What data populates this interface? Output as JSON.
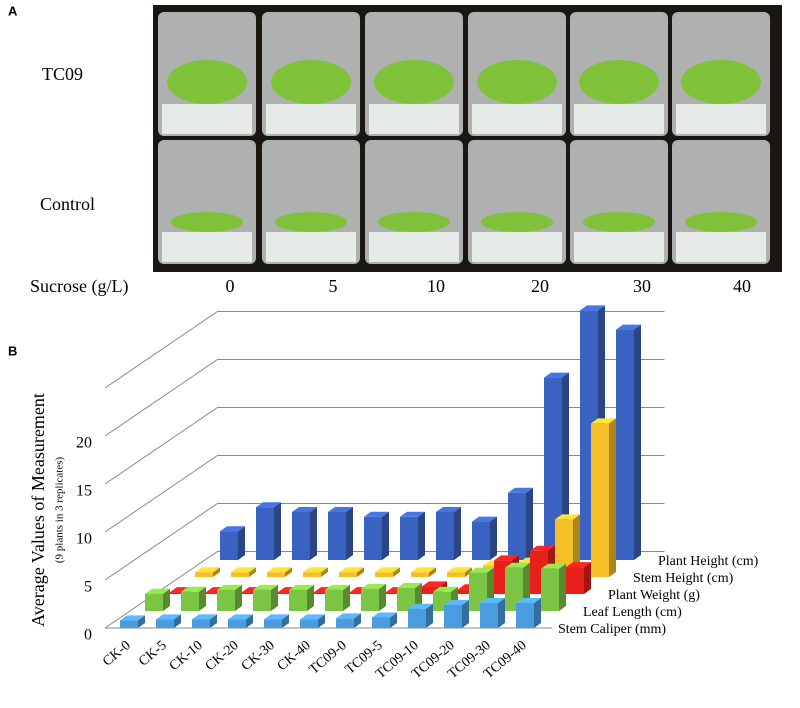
{
  "panel_a": {
    "label": "A",
    "rows": [
      "TC09",
      "Control"
    ],
    "x_label": "Sucrose (g/L)",
    "x_values": [
      0,
      5,
      10,
      20,
      30,
      40
    ]
  },
  "chart_data": {
    "type": "bar3d",
    "panel_label": "B",
    "y_label": "Average Values of Measurement",
    "y_sublabel": "(9 plants in 3 replicates)",
    "categories": [
      "CK-0",
      "CK-5",
      "CK-10",
      "CK-20",
      "CK-30",
      "CK-40",
      "TC09-0",
      "TC09-5",
      "TC09-10",
      "TC09-20",
      "TC09-30",
      "TC09-40"
    ],
    "series": [
      {
        "name": "Stem Caliper (mm)",
        "color": "#4b9be0",
        "values": [
          0.8,
          0.9,
          0.9,
          0.9,
          0.9,
          0.9,
          1.0,
          1.1,
          2.0,
          2.4,
          2.6,
          2.6
        ]
      },
      {
        "name": "Leaf Length (cm)",
        "color": "#7cc443",
        "values": [
          1.8,
          2.0,
          2.2,
          2.2,
          2.2,
          2.2,
          2.3,
          2.4,
          2.0,
          4.0,
          4.5,
          4.4
        ]
      },
      {
        "name": "Plant Weight (g)",
        "color": "#e8201c",
        "values": [
          0.2,
          0.2,
          0.2,
          0.2,
          0.2,
          0.2,
          0.2,
          0.8,
          0.5,
          3.5,
          4.5,
          2.8
        ]
      },
      {
        "name": "Stem Height (cm)",
        "color": "#f5bf2a",
        "values": [
          0.5,
          0.5,
          0.5,
          0.5,
          0.5,
          0.5,
          0.5,
          0.5,
          1.2,
          1.5,
          6.0,
          16.0
        ]
      },
      {
        "name": "Plant Height (cm)",
        "color": "#3a62c0",
        "values": [
          3.0,
          5.5,
          5.0,
          5.0,
          4.5,
          4.5,
          5.0,
          4.0,
          7.0,
          19.0,
          26.0,
          24.0
        ]
      }
    ],
    "ylim": [
      0,
      25
    ],
    "yticks": [
      0,
      5,
      10,
      15,
      20
    ],
    "grid": true
  }
}
